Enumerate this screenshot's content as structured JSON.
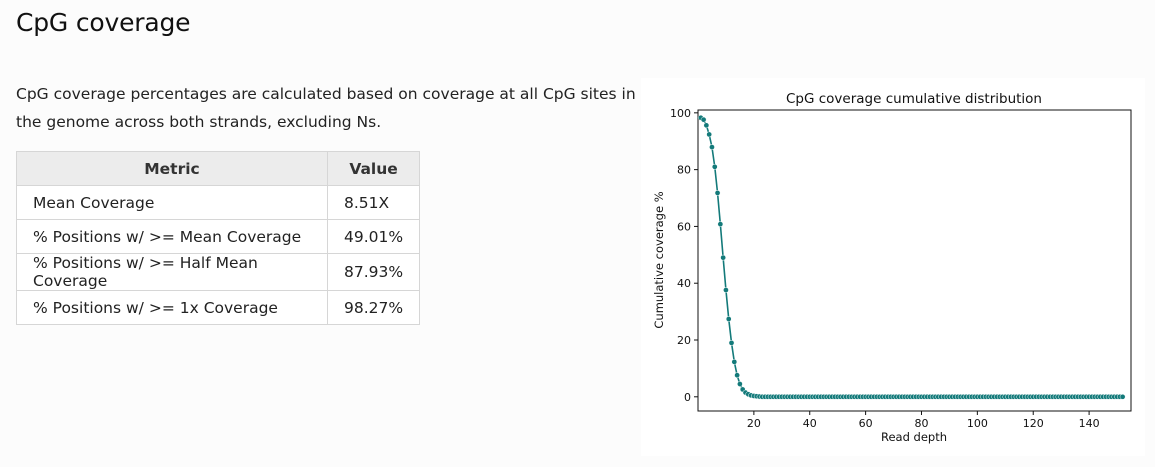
{
  "page": {
    "title": "CpG coverage",
    "description": "CpG coverage percentages are calculated based on coverage at all CpG sites in the genome across both strands, excluding Ns."
  },
  "table": {
    "headers": [
      "Metric",
      "Value"
    ],
    "rows": [
      {
        "metric": "Mean Coverage",
        "value": "8.51X"
      },
      {
        "metric": "% Positions w/ >= Mean Coverage",
        "value": "49.01%"
      },
      {
        "metric": "% Positions w/ >= Half Mean Coverage",
        "value": "87.93%"
      },
      {
        "metric": "% Positions w/ >= 1x Coverage",
        "value": "98.27%"
      }
    ]
  },
  "colors": {
    "series": "#137a7a",
    "header_bg": "#ececec",
    "border": "#d6d6d6"
  },
  "chart_data": {
    "type": "line",
    "title": "CpG coverage cumulative distribution",
    "xlabel": "Read depth",
    "ylabel": "Cumulative coverage %",
    "xlim": [
      0,
      155
    ],
    "ylim": [
      -5,
      101
    ],
    "xticks": [
      20,
      40,
      60,
      80,
      100,
      120,
      140
    ],
    "yticks": [
      0,
      20,
      40,
      60,
      80,
      100
    ],
    "grid": false,
    "markers": true,
    "x_start": 1,
    "x_end": 152,
    "head_values": [
      98.27,
      97.6,
      95.6,
      92.4,
      87.93,
      81.0,
      71.8,
      60.8,
      49.01,
      37.6,
      27.4,
      19.0,
      12.3,
      7.6,
      4.5,
      2.6,
      1.5,
      0.9,
      0.5,
      0.3,
      0.2,
      0.1
    ],
    "tail_value": 0.0
  }
}
